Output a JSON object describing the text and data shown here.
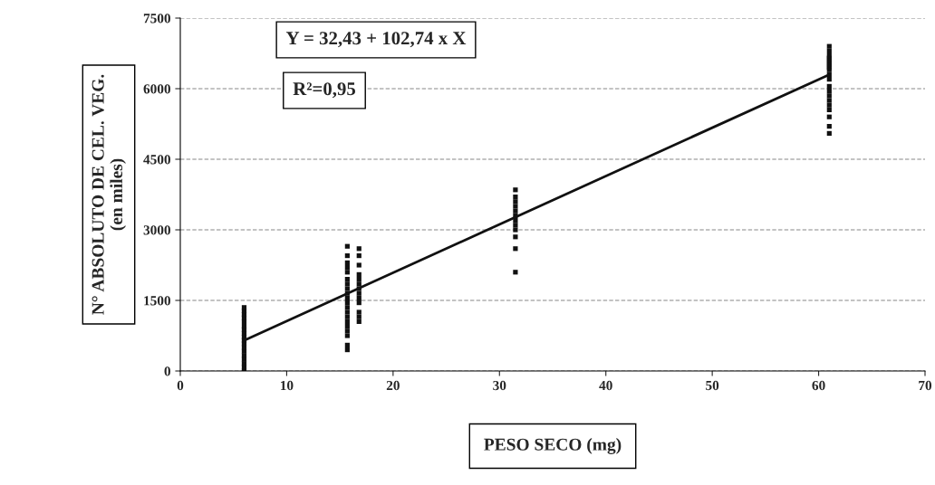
{
  "chart_data": {
    "type": "scatter",
    "xlabel": "PESO SECO (mg)",
    "ylabel": "N° ABSOLUTO DE CEL. VEG.\n(en miles)",
    "annotations": [
      "Y = 32,43 + 102,74 x X",
      "R²=0,95"
    ],
    "xlim": [
      0,
      70
    ],
    "xticks": [
      0,
      10,
      20,
      30,
      40,
      50,
      60,
      70
    ],
    "ylim": [
      0,
      7500
    ],
    "yticks": [
      0,
      1500,
      3000,
      4500,
      6000,
      7500
    ],
    "grid": "y",
    "marker": "square",
    "series": [
      {
        "color": "#111111",
        "x": [
          6,
          6,
          6,
          6,
          6,
          6,
          6,
          6,
          6,
          6,
          6,
          6,
          6,
          6,
          6,
          6,
          6,
          6,
          15.7,
          15.7,
          15.7,
          15.7,
          15.7,
          15.7,
          15.7,
          15.7,
          15.7,
          15.7,
          15.7,
          15.7,
          15.7,
          15.7,
          15.7,
          15.7,
          15.7,
          15.7,
          15.7,
          15.7,
          16.8,
          16.8,
          16.8,
          16.8,
          16.8,
          16.8,
          16.8,
          16.8,
          16.8,
          16.8,
          16.8,
          16.8,
          16.8,
          31.5,
          31.5,
          31.5,
          31.5,
          31.5,
          31.5,
          31.5,
          31.5,
          31.5,
          31.5,
          31.5,
          31.5,
          61,
          61,
          61,
          61,
          61,
          61,
          61,
          61,
          61,
          61,
          61,
          61,
          61,
          61,
          61,
          61,
          61,
          61,
          61,
          61
        ],
        "values": [
          0,
          80,
          160,
          250,
          330,
          420,
          500,
          580,
          650,
          720,
          800,
          880,
          950,
          1050,
          1130,
          1200,
          1280,
          1350,
          450,
          550,
          750,
          850,
          950,
          1050,
          1150,
          1250,
          1350,
          1450,
          1550,
          1650,
          1750,
          1850,
          1950,
          2100,
          2200,
          2300,
          2450,
          2650,
          1050,
          1150,
          1250,
          1450,
          1550,
          1650,
          1750,
          1850,
          1950,
          2050,
          2250,
          2450,
          2600,
          2100,
          2600,
          2850,
          3000,
          3100,
          3200,
          3300,
          3400,
          3500,
          3600,
          3700,
          3850,
          5050,
          5200,
          5400,
          5550,
          5650,
          5750,
          5850,
          5950,
          6050,
          6200,
          6300,
          6400,
          6450,
          6500,
          6550,
          6600,
          6650,
          6700,
          6800,
          6900
        ]
      },
      {
        "type": "line",
        "color": "#111111",
        "x": [
          6,
          61
        ],
        "values": [
          650,
          6300
        ],
        "marker": "none",
        "line_style": "solid"
      }
    ]
  }
}
